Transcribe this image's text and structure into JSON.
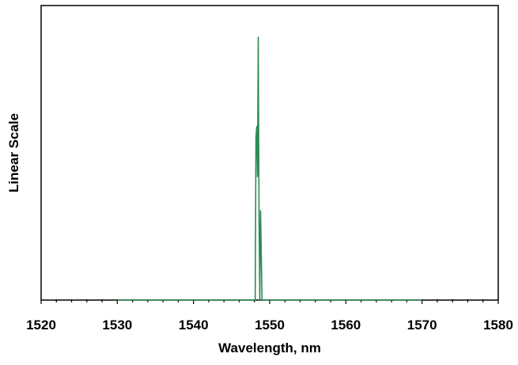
{
  "chart_data": {
    "type": "line",
    "title": "",
    "xlabel": "Wavelength, nm",
    "ylabel": "Linear Scale",
    "xlim": [
      1520,
      1580
    ],
    "ylim": [
      0,
      1.0
    ],
    "x_ticks": [
      "1520",
      "1530",
      "1540",
      "1550",
      "1560",
      "1570",
      "1580"
    ],
    "y_tick_labels_shown": false,
    "grid": false,
    "legend": "none",
    "series": [
      {
        "color": "#2e8b57",
        "x": [
          1530,
          1548.1,
          1548.2,
          1548.3,
          1548.4,
          1548.5,
          1548.6,
          1548.7,
          1548.8,
          1549.0,
          1570
        ],
        "y": [
          0,
          0,
          0.62,
          0.66,
          0.47,
          1.0,
          0.34,
          0.0,
          0.34,
          0,
          0
        ]
      }
    ]
  }
}
